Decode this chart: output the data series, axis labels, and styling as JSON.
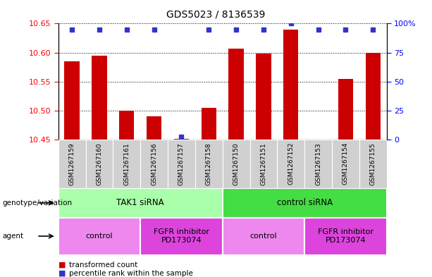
{
  "title": "GDS5023 / 8136539",
  "samples": [
    "GSM1267159",
    "GSM1267160",
    "GSM1267161",
    "GSM1267156",
    "GSM1267157",
    "GSM1267158",
    "GSM1267150",
    "GSM1267151",
    "GSM1267152",
    "GSM1267153",
    "GSM1267154",
    "GSM1267155"
  ],
  "transformed_counts": [
    10.585,
    10.595,
    10.5,
    10.49,
    10.452,
    10.505,
    10.607,
    10.598,
    10.64,
    10.45,
    10.555,
    10.6
  ],
  "percentile_ranks": [
    95,
    95,
    95,
    95,
    3,
    95,
    95,
    95,
    100,
    95,
    95,
    95
  ],
  "ylim_left": [
    10.45,
    10.65
  ],
  "ylim_right": [
    0,
    100
  ],
  "yticks_left": [
    10.45,
    10.5,
    10.55,
    10.6,
    10.65
  ],
  "yticks_right": [
    0,
    25,
    50,
    75,
    100
  ],
  "bar_color": "#cc0000",
  "dot_color": "#3333cc",
  "sample_bg_color": "#d0d0d0",
  "genotype_groups": [
    {
      "label": "TAK1 siRNA",
      "start": 0,
      "end": 6,
      "color": "#aaffaa"
    },
    {
      "label": "control siRNA",
      "start": 6,
      "end": 12,
      "color": "#44dd44"
    }
  ],
  "agent_groups": [
    {
      "label": "control",
      "start": 0,
      "end": 3,
      "color": "#ee88ee"
    },
    {
      "label": "FGFR inhibitor\nPD173074",
      "start": 3,
      "end": 6,
      "color": "#dd44dd"
    },
    {
      "label": "control",
      "start": 6,
      "end": 9,
      "color": "#ee88ee"
    },
    {
      "label": "FGFR inhibitor\nPD173074",
      "start": 9,
      "end": 12,
      "color": "#dd44dd"
    }
  ],
  "legend_items": [
    {
      "label": "transformed count",
      "color": "#cc0000"
    },
    {
      "label": "percentile rank within the sample",
      "color": "#3333cc"
    }
  ],
  "label_fontsize": 7.5,
  "tick_fontsize": 8,
  "sample_fontsize": 6.5,
  "annot_fontsize": 8.5,
  "agent_fontsize": 8.0
}
